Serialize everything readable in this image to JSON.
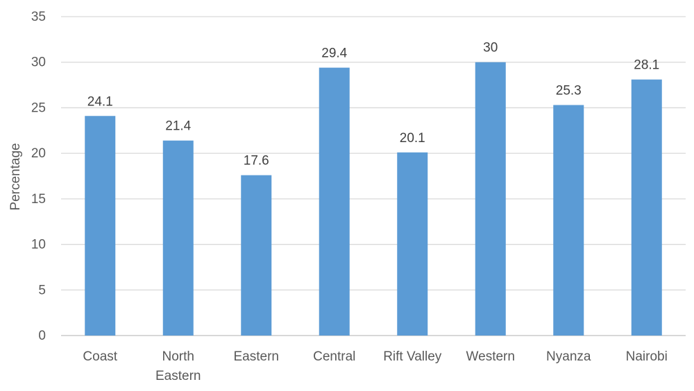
{
  "chart_data": {
    "type": "bar",
    "categories": [
      [
        "Coast"
      ],
      [
        "North",
        "Eastern"
      ],
      [
        "Eastern"
      ],
      [
        "Central"
      ],
      [
        "Rift Valley"
      ],
      [
        "Western"
      ],
      [
        "Nyanza"
      ],
      [
        "Nairobi"
      ]
    ],
    "values": [
      24.1,
      21.4,
      17.6,
      29.4,
      20.1,
      30,
      25.3,
      28.1
    ],
    "data_labels": [
      "24.1",
      "21.4",
      "17.6",
      "29.4",
      "20.1",
      "30",
      "25.3",
      "28.1"
    ],
    "title": "",
    "xlabel": "",
    "ylabel": "Percentage",
    "ylim": [
      0,
      35
    ],
    "yticks": [
      0,
      5,
      10,
      15,
      20,
      25,
      30,
      35
    ],
    "grid": "horizontal",
    "legend": "none",
    "colors": {
      "bar": "#5B9BD5",
      "grid": "#D9D9D9",
      "axis": "#BFBFBF"
    }
  }
}
